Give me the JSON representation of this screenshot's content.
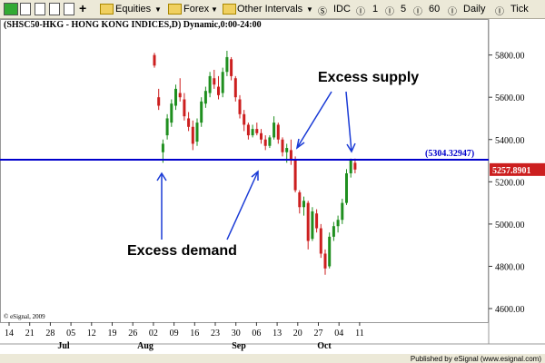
{
  "toolbar": {
    "items": [
      "Equities",
      "Forex",
      "Other Intervals",
      "IDC",
      "1",
      "5",
      "60",
      "Daily",
      "Tick"
    ]
  },
  "chart_data": {
    "type": "candlestick",
    "title": "(SHSC50-HKG - HONG KONG INDICES,D) Dynamic,0:00-24:00",
    "open": [
      5800,
      5600,
      5340,
      5420,
      5480,
      5560,
      5620,
      5590,
      5500,
      5460,
      5390,
      5480,
      5570,
      5620,
      5690,
      5650,
      5620,
      5720,
      5780,
      5690,
      5590,
      5520,
      5470,
      5420,
      5450,
      5430,
      5400,
      5370,
      5410,
      5470,
      5400,
      5340,
      5350,
      5300,
      5150,
      5080,
      5100,
      4930,
      5050,
      4980,
      4860,
      4800,
      4940,
      4990,
      5020,
      5100,
      5240,
      5290
    ],
    "high": [
      5810,
      5640,
      5400,
      5520,
      5590,
      5660,
      5690,
      5620,
      5530,
      5490,
      5500,
      5600,
      5650,
      5720,
      5730,
      5700,
      5740,
      5820,
      5790,
      5700,
      5610,
      5540,
      5480,
      5470,
      5480,
      5450,
      5420,
      5420,
      5510,
      5480,
      5410,
      5380,
      5400,
      5320,
      5160,
      5130,
      5110,
      5080,
      5070,
      5000,
      4880,
      4960,
      5010,
      5040,
      5120,
      5260,
      5310,
      5310
    ],
    "low": [
      5740,
      5540,
      5290,
      5400,
      5460,
      5540,
      5580,
      5490,
      5440,
      5350,
      5370,
      5460,
      5550,
      5600,
      5640,
      5590,
      5600,
      5700,
      5680,
      5580,
      5500,
      5440,
      5400,
      5410,
      5420,
      5380,
      5350,
      5360,
      5400,
      5380,
      5320,
      5290,
      5280,
      5150,
      5050,
      5040,
      4880,
      4920,
      4960,
      4840,
      4760,
      4790,
      4920,
      4960,
      5000,
      5090,
      5220,
      5240
    ],
    "close": [
      5750,
      5560,
      5380,
      5500,
      5570,
      5640,
      5600,
      5510,
      5460,
      5380,
      5480,
      5580,
      5630,
      5700,
      5660,
      5610,
      5720,
      5790,
      5700,
      5600,
      5520,
      5470,
      5420,
      5450,
      5430,
      5400,
      5370,
      5410,
      5480,
      5400,
      5340,
      5360,
      5300,
      5160,
      5080,
      5110,
      4920,
      5060,
      4980,
      4860,
      4790,
      4940,
      4990,
      5020,
      5100,
      5240,
      5300,
      5258
    ],
    "up_color": "#1f8f1f",
    "down_color": "#cc1f1f",
    "ylim": [
      4540,
      5910
    ],
    "yticks": [
      {
        "value": 5800,
        "label": "5800.00"
      },
      {
        "value": 5600,
        "label": "5600.00"
      },
      {
        "value": 5400,
        "label": "5400.00"
      },
      {
        "value": 5200,
        "label": "5200.00"
      },
      {
        "value": 5000,
        "label": "5000.00"
      },
      {
        "value": 4800,
        "label": "4800.00"
      },
      {
        "value": 4600,
        "label": "4600.00"
      }
    ],
    "xticks": [
      "14",
      "21",
      "28",
      "05",
      "12",
      "19",
      "26",
      "02",
      "09",
      "16",
      "23",
      "30",
      "06",
      "13",
      "20",
      "27",
      "04",
      "11"
    ],
    "months": [
      "Jul",
      "Aug",
      "Sep",
      "Oct"
    ],
    "hline": {
      "value": 5304.32947,
      "label": "(5304.32947)",
      "color": "#0000cc"
    },
    "last_price": 5257.8901,
    "annotations": [
      "Excess supply",
      "Excess demand"
    ],
    "copyright": "© eSignal, 2009",
    "footer": "Published by eSignal (www.esignal.com)"
  }
}
